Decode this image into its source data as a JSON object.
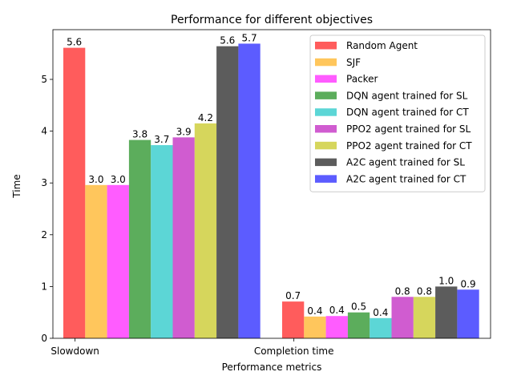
{
  "chart_data": {
    "type": "bar",
    "title": "Performance for different objectives",
    "xlabel": "Performance metrics",
    "ylabel": "Time",
    "categories": [
      "Slowdown",
      "Completion time"
    ],
    "ylim": [
      0,
      5.96
    ],
    "yticks": [
      0,
      1,
      2,
      3,
      4,
      5
    ],
    "grid": false,
    "legend_position": "top-right",
    "series": [
      {
        "name": "Random Agent",
        "color": "#ff3333",
        "values": [
          5.61,
          0.71
        ],
        "labels": [
          "5.6",
          "0.7"
        ]
      },
      {
        "name": "SJF",
        "color": "#ffb833",
        "values": [
          2.96,
          0.42
        ],
        "labels": [
          "3.0",
          "0.4"
        ]
      },
      {
        "name": "Packer",
        "color": "#ff33ff",
        "values": [
          2.96,
          0.43
        ],
        "labels": [
          "3.0",
          "0.4"
        ]
      },
      {
        "name": "DQN agent trained for SL",
        "color": "#339933",
        "values": [
          3.83,
          0.5
        ],
        "labels": [
          "3.8",
          "0.5"
        ]
      },
      {
        "name": "DQN agent trained for CT",
        "color": "#33cccc",
        "values": [
          3.73,
          0.39
        ],
        "labels": [
          "3.7",
          "0.4"
        ]
      },
      {
        "name": "PPO2 agent trained for SL",
        "color": "#c433c4",
        "values": [
          3.88,
          0.8
        ],
        "labels": [
          "3.9",
          "0.8"
        ]
      },
      {
        "name": "PPO2 agent trained for CT",
        "color": "#cccc33",
        "values": [
          4.15,
          0.8
        ],
        "labels": [
          "4.2",
          "0.8"
        ]
      },
      {
        "name": "A2C agent trained for SL",
        "color": "#333333",
        "values": [
          5.64,
          1.0
        ],
        "labels": [
          "5.6",
          "1.0"
        ]
      },
      {
        "name": "A2C agent trained for CT",
        "color": "#3333ff",
        "values": [
          5.69,
          0.94
        ],
        "labels": [
          "5.7",
          "0.9"
        ]
      }
    ]
  }
}
